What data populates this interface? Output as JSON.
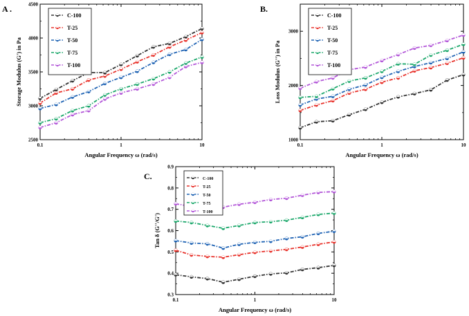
{
  "colors": {
    "C-100": "#333333",
    "T-25": "#e8312a",
    "T-50": "#1f63b4",
    "T-75": "#1aa76a",
    "T-100": "#b255d8"
  },
  "chart_data": [
    {
      "id": "A",
      "panel_label": "A .",
      "type": "line",
      "xscale": "log",
      "xlim": [
        0.1,
        10
      ],
      "ylim": [
        2500,
        4500
      ],
      "xticks": [
        0.1,
        1,
        10
      ],
      "xtick_labels": [
        "0.1",
        "1",
        "10"
      ],
      "yticks": [
        2500,
        3000,
        3500,
        4000,
        4500
      ],
      "ytick_labels": [
        "2500",
        "3000",
        "3500",
        "4000",
        "4500"
      ],
      "xlabel": "Angular Frequency ω (rad/s)",
      "ylabel": "Storage Modulus (G') in Pa",
      "legend_position": "top-left",
      "x": [
        0.1,
        0.158,
        0.251,
        0.398,
        0.631,
        1,
        1.585,
        2.512,
        3.981,
        6.31,
        10
      ],
      "series": [
        {
          "name": "C-100",
          "values": [
            3110,
            3240,
            3370,
            3490,
            3490,
            3610,
            3740,
            3870,
            3920,
            4020,
            4140
          ]
        },
        {
          "name": "T-25",
          "values": [
            3040,
            3190,
            3250,
            3380,
            3440,
            3540,
            3650,
            3750,
            3870,
            3970,
            4080
          ]
        },
        {
          "name": "T-50",
          "values": [
            2960,
            3020,
            3130,
            3210,
            3330,
            3420,
            3510,
            3640,
            3760,
            3830,
            3980
          ]
        },
        {
          "name": "T-75",
          "values": [
            2750,
            2810,
            2930,
            3000,
            3160,
            3250,
            3320,
            3400,
            3500,
            3630,
            3720
          ]
        },
        {
          "name": "T-100",
          "values": [
            2680,
            2750,
            2870,
            2930,
            3100,
            3190,
            3250,
            3320,
            3420,
            3580,
            3640
          ]
        }
      ]
    },
    {
      "id": "B",
      "panel_label": "B.",
      "type": "line",
      "xscale": "log",
      "xlim": [
        0.1,
        10
      ],
      "ylim": [
        1000,
        3500
      ],
      "xticks": [
        0.1,
        1,
        10
      ],
      "xtick_labels": [
        "0.1",
        "1",
        "10"
      ],
      "yticks": [
        1000,
        2000,
        3000
      ],
      "ytick_labels": [
        "1000",
        "2000",
        "3000"
      ],
      "xlabel": "Angular Frequency ω (rad/s)",
      "ylabel": "Loss Modulus (G'') in Pa",
      "legend_position": "top-left",
      "x": [
        0.1,
        0.158,
        0.251,
        0.398,
        0.631,
        1,
        1.585,
        2.512,
        3.981,
        6.31,
        10
      ],
      "series": [
        {
          "name": "C-100",
          "values": [
            1220,
            1330,
            1350,
            1460,
            1560,
            1690,
            1790,
            1850,
            1920,
            2100,
            2200
          ]
        },
        {
          "name": "T-25",
          "values": [
            1540,
            1640,
            1720,
            1860,
            1930,
            2060,
            2140,
            2270,
            2330,
            2410,
            2510
          ]
        },
        {
          "name": "T-50",
          "values": [
            1640,
            1750,
            1800,
            1930,
            2010,
            2150,
            2260,
            2350,
            2420,
            2500,
            2620
          ]
        },
        {
          "name": "T-75",
          "values": [
            1780,
            1800,
            1940,
            2080,
            2140,
            2260,
            2400,
            2390,
            2560,
            2650,
            2760
          ]
        },
        {
          "name": "T-100",
          "values": [
            1950,
            2070,
            2140,
            2290,
            2340,
            2460,
            2570,
            2690,
            2740,
            2830,
            2930
          ]
        }
      ]
    },
    {
      "id": "C",
      "panel_label": "C.",
      "type": "line",
      "xscale": "log",
      "xlim": [
        0.1,
        10
      ],
      "ylim": [
        0.3,
        0.9
      ],
      "xticks": [
        0.1,
        1,
        10
      ],
      "xtick_labels": [
        "0.1",
        "1",
        "10"
      ],
      "yticks": [
        0.3,
        0.4,
        0.5,
        0.6,
        0.7,
        0.8,
        0.9
      ],
      "ytick_labels": [
        "0.3",
        "0.4",
        "0.5",
        "0.6",
        "0.7",
        "0.8",
        "0.9"
      ],
      "xlabel": "Angular Frequency ω (rad/s)",
      "ylabel": "Tan δ (G''/G')",
      "legend_position": "top-left",
      "x": [
        0.1,
        0.158,
        0.251,
        0.398,
        0.631,
        1,
        1.585,
        2.512,
        3.981,
        6.31,
        10
      ],
      "series": [
        {
          "name": "C-100",
          "values": [
            0.393,
            0.383,
            0.375,
            0.358,
            0.372,
            0.386,
            0.397,
            0.402,
            0.418,
            0.426,
            0.437
          ]
        },
        {
          "name": "T-25",
          "values": [
            0.508,
            0.486,
            0.479,
            0.475,
            0.487,
            0.498,
            0.505,
            0.512,
            0.523,
            0.536,
            0.547
          ]
        },
        {
          "name": "T-50",
          "values": [
            0.553,
            0.542,
            0.538,
            0.518,
            0.536,
            0.545,
            0.55,
            0.563,
            0.571,
            0.587,
            0.597
          ]
        },
        {
          "name": "T-75",
          "values": [
            0.645,
            0.638,
            0.624,
            0.611,
            0.624,
            0.638,
            0.642,
            0.649,
            0.662,
            0.676,
            0.682
          ]
        },
        {
          "name": "T-100",
          "values": [
            0.726,
            0.713,
            0.702,
            0.71,
            0.724,
            0.733,
            0.746,
            0.752,
            0.766,
            0.779,
            0.783
          ]
        }
      ]
    }
  ]
}
